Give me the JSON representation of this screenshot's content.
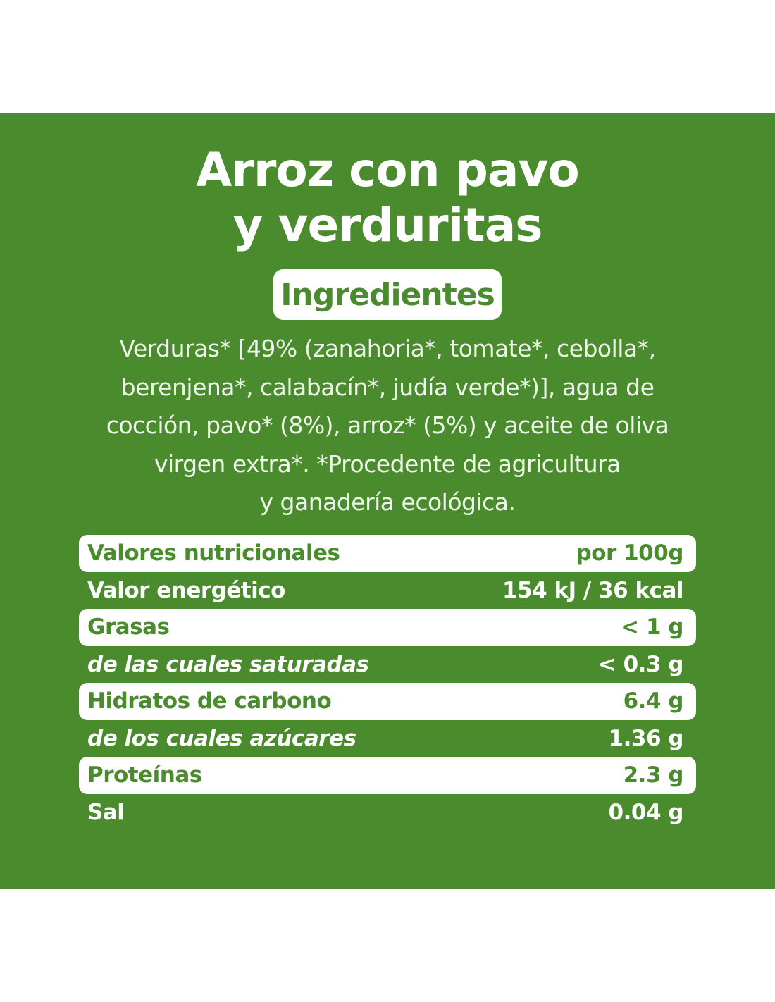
{
  "product": {
    "title_line1": "Arroz con pavo",
    "title_line2": "y verduritas"
  },
  "ingredients": {
    "heading": "Ingredientes",
    "lines": [
      "Verduras* [49% (zanahoria*, tomate*, cebolla*,",
      "berenjena*, calabacín*, judía verde*)], agua de",
      "cocción, pavo* (8%), arroz* (5%) y aceite de oliva",
      "virgen extra*. *Procedente de agricultura",
      "y ganadería ecológica."
    ]
  },
  "nutrition": {
    "rows": [
      {
        "label": "Valores nutricionales",
        "value": "por 100g"
      },
      {
        "label": "Valor energético",
        "value": "154 kJ / 36 kcal"
      },
      {
        "label": "Grasas",
        "value": "< 1 g"
      },
      {
        "label": "de las cuales saturadas",
        "value": "< 0.3 g"
      },
      {
        "label": "Hidratos de carbono",
        "value": "6.4 g"
      },
      {
        "label": "de los cuales azúcares",
        "value": "1.36 g"
      },
      {
        "label": "Proteínas",
        "value": "2.3 g"
      },
      {
        "label": "Sal",
        "value": "0.04 g"
      }
    ]
  },
  "colors": {
    "brand_green": "#4a8b2d",
    "white": "#ffffff"
  }
}
